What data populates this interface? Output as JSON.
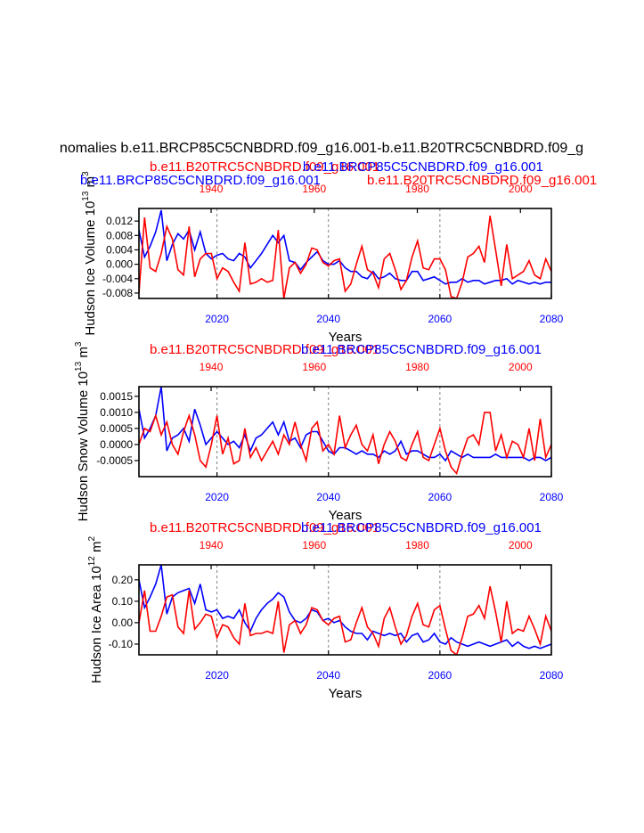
{
  "main_title": "nomalies b.e11.BRCP85C5CNBDRD.f09_g16.001-b.e11.B20TRC5CNBDRD.f09_g",
  "colors": {
    "red": "#ff0000",
    "blue": "#0000ff",
    "axis": "#000000",
    "grid": "#808080"
  },
  "chart_data": [
    {
      "type": "line",
      "panel": "ice-volume",
      "title_red": "b.e11.B20TRC5CNBDRD.f09_g16.001",
      "title_blue": "b.e11.BRCP85C5CNBDRD.f09_g16.001",
      "title_blue_2": "b.e11.BRCP85C5CNBDRD.f09_g16.001",
      "title_red_2": "b.e11.B20TRC5CNBDRD.f09_g16.001",
      "top_xticks": [
        "1940",
        "1960",
        "1980",
        "2000"
      ],
      "bottom_xticks": [
        "2020",
        "2040",
        "2060",
        "2080"
      ],
      "xlabel": "Years",
      "ylabel": "Hudson Ice Volume 10^13 m^3",
      "ylabel_main": "Hudson Ice Volume 10",
      "ylabel_exp": "13",
      "ylabel_unit": "m",
      "ylabel_unit_exp": "3",
      "yticks": [
        "0.012",
        "0.008",
        "0.004",
        "0.000",
        "-0.004",
        "-0.008"
      ],
      "ytick_values": [
        0.012,
        0.008,
        0.004,
        0.0,
        -0.004,
        -0.008
      ],
      "ylim": [
        -0.0095,
        0.0155
      ],
      "xlim_bottom": [
        2006,
        2080
      ],
      "xlim_top": [
        1926,
        2006
      ],
      "dashed_grid_x": [
        2020,
        2040,
        2060
      ],
      "series": [
        {
          "name": "b.e11.BRCP85C5CNBDRD.f09_g16.001",
          "color": "blue",
          "x_start": 2006,
          "values": [
            0.0095,
            0.002,
            0.005,
            0.009,
            0.015,
            0.001,
            0.0055,
            0.0085,
            0.007,
            0.0095,
            0.004,
            0.009,
            0.003,
            0.0015,
            0.0025,
            0.003,
            0.0015,
            0.001,
            0.003,
            0.002,
            -0.001,
            0.001,
            0.003,
            0.0055,
            0.008,
            0.006,
            0.008,
            0.001,
            0.0005,
            -0.0015,
            0.0005,
            0.002,
            0.0035,
            0.001,
            0.0,
            0.0,
            0.001,
            -0.001,
            -0.002,
            -0.002,
            -0.0035,
            -0.004,
            -0.002,
            -0.004,
            -0.0035,
            -0.0025,
            -0.004,
            -0.0045,
            -0.0045,
            -0.002,
            -0.002,
            -0.0045,
            -0.004,
            -0.0035,
            -0.0045,
            -0.0055,
            -0.005,
            -0.005,
            -0.004,
            -0.005,
            -0.0045,
            -0.0045,
            -0.0055,
            -0.005,
            -0.0045,
            -0.0045,
            -0.004,
            -0.0055,
            -0.0045,
            -0.005,
            -0.0055,
            -0.005,
            -0.0055,
            -0.005,
            -0.005
          ]
        },
        {
          "name": "b.e11.B20TRC5CNBDRD.f09_g16.001",
          "color": "red",
          "x_start": 2006,
          "values": [
            -0.008,
            0.013,
            -0.001,
            -0.002,
            0.003,
            0.0105,
            0.007,
            -0.0015,
            -0.003,
            0.0105,
            -0.0035,
            0.0015,
            0.003,
            0.003,
            -0.004,
            -0.001,
            -0.002,
            -0.005,
            -0.0075,
            0.006,
            -0.0055,
            -0.005,
            -0.004,
            -0.005,
            -0.0045,
            0.0095,
            -0.0095,
            -0.001,
            0.0005,
            -0.0025,
            0.0,
            0.0045,
            0.004,
            0.0005,
            -0.0005,
            0.001,
            0.0015,
            -0.0075,
            -0.0055,
            0.0,
            0.005,
            -0.0015,
            -0.0025,
            -0.0065,
            0.0015,
            0.003,
            -0.0015,
            -0.007,
            -0.0045,
            0.002,
            0.0065,
            -0.001,
            -0.0015,
            0.0015,
            0.0015,
            -0.0015,
            -0.009,
            -0.0095,
            -0.005,
            0.002,
            0.003,
            0.005,
            0.0005,
            0.0135,
            0.004,
            -0.006,
            0.0055,
            -0.004,
            -0.003,
            -0.002,
            0.001,
            -0.003,
            -0.004,
            0.0015,
            -0.002
          ]
        }
      ]
    },
    {
      "type": "line",
      "panel": "snow-volume",
      "title_red": "b.e11.B20TRC5CNBDRD.f09_g16.001",
      "title_blue": "b.e11.BRCP85C5CNBDRD.f09_g16.001",
      "top_xticks": [
        "1940",
        "1960",
        "1980",
        "2000"
      ],
      "bottom_xticks": [
        "2020",
        "2040",
        "2060",
        "2080"
      ],
      "xlabel": "Years",
      "ylabel": "Hudson Snow Volume 10^13 m^3",
      "ylabel_main": "Hudson Snow Volume 10",
      "ylabel_exp": "13",
      "ylabel_unit": "m",
      "ylabel_unit_exp": "3",
      "yticks": [
        "0.0015",
        "0.0010",
        "0.0005",
        "0.0000",
        "-0.0005"
      ],
      "ytick_values": [
        0.0015,
        0.001,
        0.0005,
        0.0,
        -0.0005
      ],
      "ylim": [
        -0.001,
        0.0018
      ],
      "xlim_bottom": [
        2006,
        2080
      ],
      "xlim_top": [
        1926,
        2006
      ],
      "dashed_grid_x": [
        2020,
        2040,
        2060
      ],
      "series": [
        {
          "name": "b.e11.BRCP85C5CNBDRD.f09_g16.001",
          "color": "blue",
          "x_start": 2006,
          "values": [
            0.0011,
            0.0002,
            0.0005,
            0.0009,
            0.0018,
            -0.0002,
            0.0002,
            0.0003,
            0.0005,
            0.0001,
            0.0011,
            0.0006,
            0.0,
            0.0002,
            0.0004,
            0.0002,
            0.0,
            0.0001,
            -0.0001,
            0.0003,
            -0.0002,
            0.0002,
            0.0003,
            0.0005,
            0.0007,
            0.0003,
            0.0007,
            0.0001,
            0.0002,
            -0.0001,
            0.0003,
            0.0004,
            0.0004,
            0.0001,
            -0.0002,
            -0.0003,
            -0.0001,
            -0.0001,
            -0.0002,
            -0.0003,
            -0.0002,
            -0.0003,
            -0.0003,
            -0.0004,
            -0.0002,
            -0.0003,
            -0.0002,
            0.0001,
            -0.0003,
            -0.0002,
            -0.0002,
            -0.0003,
            -0.0004,
            -0.0004,
            -0.0003,
            -0.0005,
            -0.0002,
            -0.0003,
            -0.0004,
            -0.0003,
            -0.0004,
            -0.0004,
            -0.0004,
            -0.0004,
            -0.0003,
            -0.0004,
            -0.0004,
            -0.0004,
            -0.0004,
            -0.0004,
            -0.0005,
            -0.0004,
            -0.0004,
            -0.0005,
            -0.0004
          ]
        },
        {
          "name": "b.e11.B20TRC5CNBDRD.f09_g16.001",
          "color": "red",
          "x_start": 2006,
          "values": [
            0.0,
            0.0005,
            0.0004,
            0.0009,
            0.0003,
            0.0007,
            0.0,
            -0.0003,
            0.0004,
            0.0009,
            0.0003,
            -0.0005,
            -0.0007,
            0.0,
            0.0009,
            -0.0003,
            0.0002,
            -0.0006,
            -0.0005,
            0.0005,
            -0.0004,
            -0.0001,
            -0.0005,
            -0.0002,
            0.0001,
            -0.0003,
            0.0003,
            0.0,
            0.0007,
            0.0,
            -0.0005,
            0.0005,
            0.0007,
            -0.0002,
            0.0,
            -0.0003,
            0.0009,
            -0.0001,
            0.0003,
            0.0006,
            0.0,
            -0.0002,
            0.0003,
            -0.0006,
            0.0,
            0.0004,
            0.0001,
            -0.0004,
            -0.0005,
            0.0,
            0.0004,
            -0.0004,
            -0.0005,
            0.0,
            0.0005,
            -0.0002,
            -0.0007,
            -0.0009,
            -0.0003,
            0.0002,
            0.0003,
            0.0,
            0.001,
            0.001,
            -0.0002,
            0.0003,
            -0.0004,
            0.0001,
            0.0,
            -0.0004,
            0.0005,
            -0.0005,
            0.0008,
            -0.0004,
            0.0
          ]
        }
      ]
    },
    {
      "type": "line",
      "panel": "ice-area",
      "title_red": "b.e11.B20TRC5CNBDRD.f09_g16.001",
      "title_blue": "b.e11.BRCP85C5CNBDRD.f09_g16.001",
      "top_xticks": [
        "1940",
        "1960",
        "1980",
        "2000"
      ],
      "bottom_xticks": [
        "2020",
        "2040",
        "2060",
        "2080"
      ],
      "xlabel": "Years",
      "ylabel": "Hudson Ice Area 10^12 m^2",
      "ylabel_main": "Hudson Ice Area 10",
      "ylabel_exp": "12",
      "ylabel_unit": "m",
      "ylabel_unit_exp": "2",
      "yticks": [
        "0.20",
        "0.10",
        "0.00",
        "-0.10"
      ],
      "ytick_values": [
        0.2,
        0.1,
        0.0,
        -0.1
      ],
      "ylim": [
        -0.15,
        0.27
      ],
      "xlim_bottom": [
        2006,
        2080
      ],
      "xlim_top": [
        1926,
        2006
      ],
      "dashed_grid_x": [
        2020,
        2040,
        2060
      ],
      "series": [
        {
          "name": "b.e11.BRCP85C5CNBDRD.f09_g16.001",
          "color": "blue",
          "x_start": 2006,
          "values": [
            0.2,
            0.07,
            0.12,
            0.18,
            0.27,
            0.04,
            0.12,
            0.14,
            0.15,
            0.16,
            0.09,
            0.18,
            0.06,
            0.05,
            0.06,
            0.02,
            0.03,
            0.02,
            0.06,
            0.0,
            -0.04,
            0.02,
            0.06,
            0.09,
            0.11,
            0.14,
            0.12,
            0.05,
            0.01,
            0.0,
            0.02,
            0.06,
            0.05,
            0.01,
            0.02,
            0.0,
            0.01,
            -0.02,
            -0.04,
            -0.05,
            -0.05,
            -0.08,
            -0.04,
            -0.05,
            -0.06,
            -0.05,
            -0.06,
            -0.05,
            -0.09,
            -0.06,
            -0.05,
            -0.09,
            -0.08,
            -0.05,
            -0.09,
            -0.1,
            -0.07,
            -0.09,
            -0.1,
            -0.11,
            -0.1,
            -0.09,
            -0.1,
            -0.11,
            -0.1,
            -0.09,
            -0.08,
            -0.11,
            -0.09,
            -0.11,
            -0.12,
            -0.11,
            -0.12,
            -0.11,
            -0.1
          ]
        },
        {
          "name": "b.e11.B20TRC5CNBDRD.f09_g16.001",
          "color": "red",
          "x_start": 2006,
          "values": [
            0.0,
            0.15,
            -0.04,
            -0.04,
            0.03,
            0.12,
            0.13,
            -0.02,
            -0.05,
            0.15,
            -0.03,
            0.0,
            0.04,
            0.03,
            -0.07,
            -0.01,
            -0.02,
            -0.07,
            -0.1,
            0.09,
            -0.06,
            -0.05,
            -0.05,
            -0.04,
            -0.05,
            0.1,
            -0.14,
            -0.01,
            0.01,
            -0.05,
            -0.01,
            0.07,
            0.06,
            0.01,
            -0.01,
            0.02,
            0.03,
            -0.09,
            -0.08,
            0.0,
            0.07,
            -0.02,
            -0.05,
            -0.11,
            0.02,
            0.07,
            -0.02,
            -0.1,
            -0.06,
            0.03,
            0.09,
            -0.01,
            -0.02,
            0.06,
            0.08,
            -0.03,
            -0.13,
            -0.15,
            -0.07,
            0.03,
            0.04,
            0.08,
            0.02,
            0.17,
            0.05,
            -0.09,
            0.1,
            -0.05,
            -0.03,
            -0.04,
            0.03,
            -0.03,
            -0.1,
            0.03,
            -0.04
          ]
        }
      ]
    }
  ]
}
